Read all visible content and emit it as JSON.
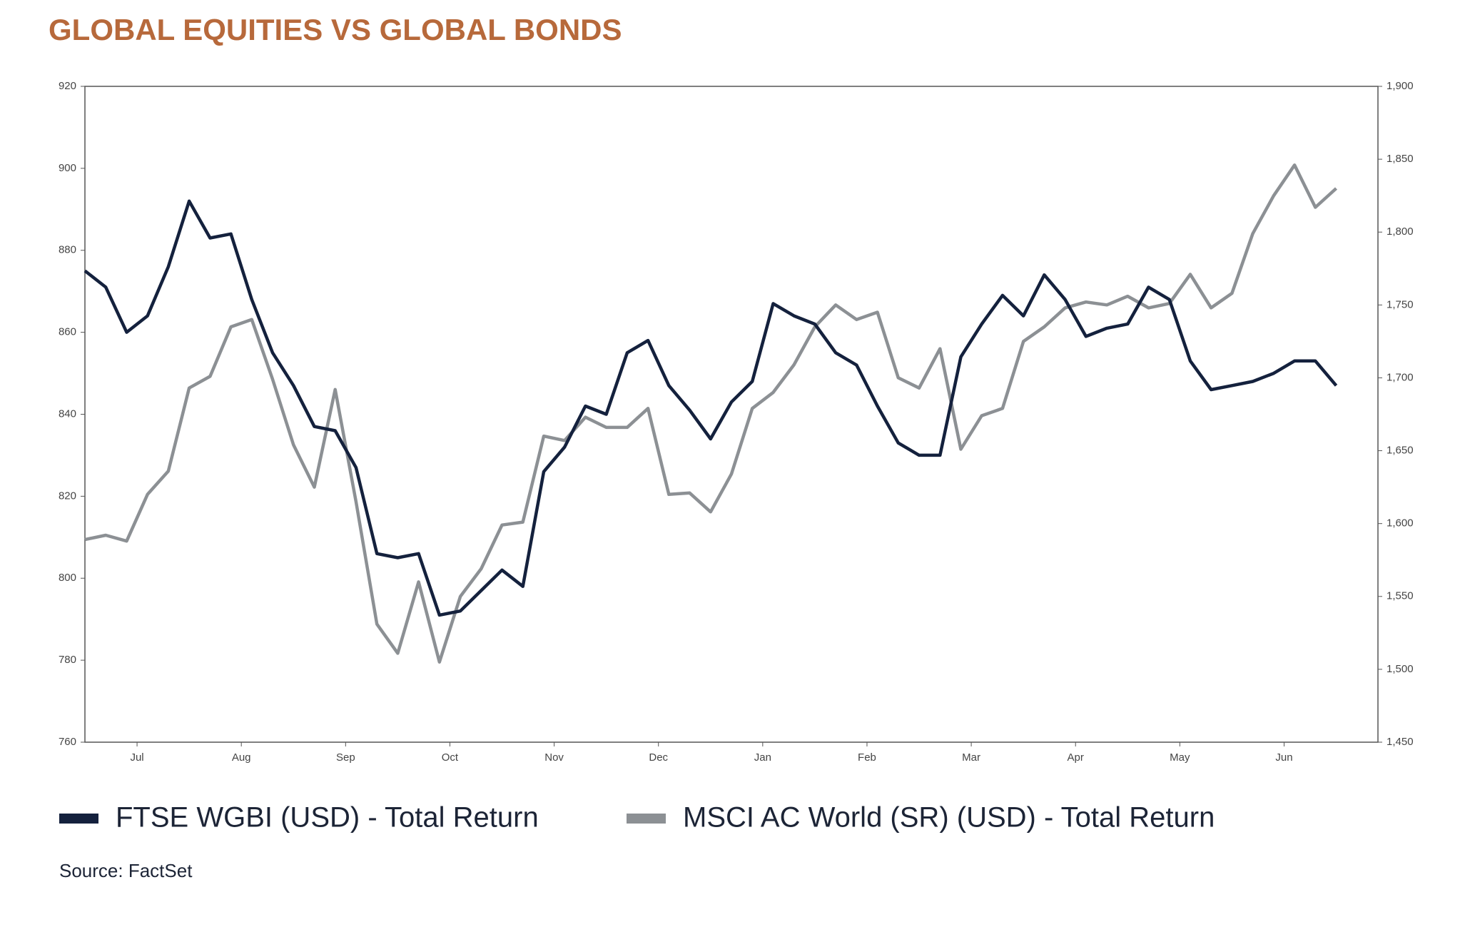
{
  "chart_data": {
    "type": "line",
    "title": "GLOBAL EQUITIES VS GLOBAL BONDS",
    "source": "Source: FactSet",
    "x": [
      0,
      0.2,
      0.4,
      0.6,
      0.8,
      1.0,
      1.2,
      1.4,
      1.6,
      1.8,
      2.0,
      2.2,
      2.4,
      2.6,
      2.8,
      3.0,
      3.2,
      3.4,
      3.6,
      3.8,
      4.0,
      4.2,
      4.4,
      4.6,
      4.8,
      5.0,
      5.2,
      5.4,
      5.6,
      5.8,
      6.0,
      6.2,
      6.4,
      6.6,
      6.8,
      7.0,
      7.2,
      7.4,
      7.6,
      7.8,
      8.0,
      8.2,
      8.4,
      8.6,
      8.8,
      9.0,
      9.2,
      9.4,
      9.6,
      9.8,
      10.0,
      10.2,
      10.4,
      10.6,
      10.8,
      11.0,
      11.2,
      11.4,
      11.6,
      11.8,
      12.0
    ],
    "xlim": [
      0,
      12.4
    ],
    "xticks": [
      {
        "value": 0.5,
        "label": "Jul"
      },
      {
        "value": 1.5,
        "label": "Aug"
      },
      {
        "value": 2.5,
        "label": "Sep"
      },
      {
        "value": 3.5,
        "label": "Oct"
      },
      {
        "value": 4.5,
        "label": "Nov"
      },
      {
        "value": 5.5,
        "label": "Dec"
      },
      {
        "value": 6.5,
        "label": "Jan"
      },
      {
        "value": 7.5,
        "label": "Feb"
      },
      {
        "value": 8.5,
        "label": "Mar"
      },
      {
        "value": 9.5,
        "label": "Apr"
      },
      {
        "value": 10.5,
        "label": "May"
      },
      {
        "value": 11.5,
        "label": "Jun"
      }
    ],
    "ylim": [
      760,
      920
    ],
    "yticks": [
      760,
      780,
      800,
      820,
      840,
      860,
      880,
      900,
      920
    ],
    "y2lim": [
      1450,
      1900
    ],
    "y2ticks": [
      {
        "value": 1450,
        "label": "1,450"
      },
      {
        "value": 1500,
        "label": "1,500"
      },
      {
        "value": 1550,
        "label": "1,550"
      },
      {
        "value": 1600,
        "label": "1,600"
      },
      {
        "value": 1650,
        "label": "1,650"
      },
      {
        "value": 1700,
        "label": "1,700"
      },
      {
        "value": 1750,
        "label": "1,750"
      },
      {
        "value": 1800,
        "label": "1,800"
      },
      {
        "value": 1850,
        "label": "1,850"
      },
      {
        "value": 1900,
        "label": "1,900"
      }
    ],
    "series": [
      {
        "name": "FTSE WGBI (USD) - Total Return",
        "color": "#14213d",
        "axis": "y",
        "values": [
          875,
          871,
          860,
          864,
          876,
          892,
          883,
          884,
          868,
          855,
          847,
          837,
          836,
          827,
          806,
          805,
          806,
          791,
          792,
          797,
          802,
          798,
          826,
          832,
          842,
          840,
          855,
          858,
          847,
          841,
          834,
          843,
          848,
          867,
          864,
          862,
          855,
          852,
          842,
          833,
          830,
          830,
          854,
          862,
          869,
          864,
          874,
          868,
          859,
          861,
          862,
          871,
          868,
          853,
          846,
          847,
          848,
          850,
          853,
          853,
          847
        ]
      },
      {
        "name": "MSCI AC World (SR) (USD) - Total Return",
        "color": "#8c9094",
        "axis": "y2",
        "values": [
          1589,
          1592,
          1588,
          1620,
          1636,
          1693,
          1701,
          1735,
          1740,
          1699,
          1654,
          1625,
          1692,
          1615,
          1531,
          1511,
          1560,
          1505,
          1550,
          1569,
          1599,
          1601,
          1660,
          1657,
          1673,
          1666,
          1666,
          1679,
          1620,
          1621,
          1608,
          1634,
          1679,
          1690,
          1709,
          1735,
          1750,
          1740,
          1745,
          1700,
          1693,
          1720,
          1651,
          1674,
          1679,
          1725,
          1735,
          1748,
          1752,
          1750,
          1756,
          1748,
          1751,
          1771,
          1748,
          1758,
          1799,
          1825,
          1846,
          1817,
          1830
        ]
      }
    ]
  }
}
